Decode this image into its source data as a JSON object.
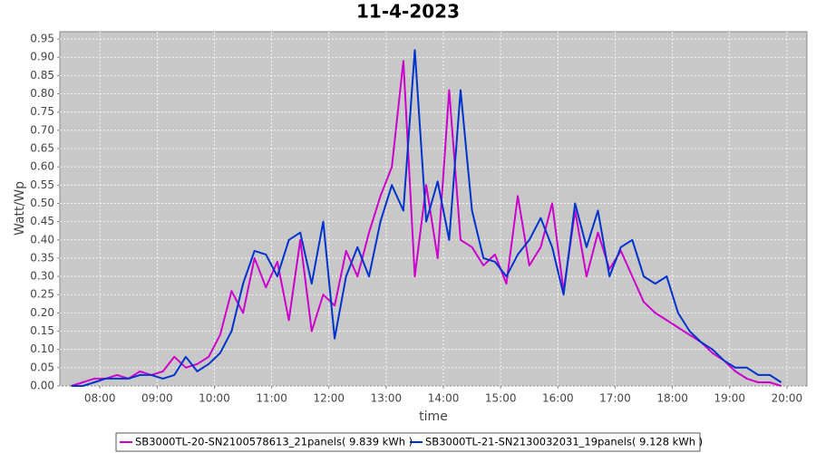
{
  "chart_data": {
    "type": "line",
    "title": "11-4-2023",
    "x_label": "time",
    "y_label": "Watt/Wp",
    "x": [
      7.5,
      7.7,
      7.9,
      8.1,
      8.3,
      8.5,
      8.7,
      8.9,
      9.1,
      9.3,
      9.5,
      9.7,
      9.9,
      10.1,
      10.3,
      10.5,
      10.7,
      10.9,
      11.1,
      11.3,
      11.5,
      11.7,
      11.9,
      12.1,
      12.3,
      12.5,
      12.7,
      12.9,
      13.1,
      13.3,
      13.5,
      13.7,
      13.9,
      14.1,
      14.3,
      14.5,
      14.7,
      14.9,
      15.1,
      15.3,
      15.5,
      15.7,
      15.9,
      16.1,
      16.3,
      16.5,
      16.7,
      16.9,
      17.1,
      17.3,
      17.5,
      17.7,
      17.9,
      18.1,
      18.3,
      18.5,
      18.7,
      18.9,
      19.1,
      19.3,
      19.5,
      19.7,
      19.9
    ],
    "series": [
      {
        "name": "SB3000TL-20-SN2100578613_21panels( 9.839 kWh )",
        "color": "#cc00cc",
        "values": [
          0.0,
          0.01,
          0.02,
          0.02,
          0.03,
          0.02,
          0.04,
          0.03,
          0.04,
          0.08,
          0.05,
          0.06,
          0.08,
          0.14,
          0.26,
          0.2,
          0.35,
          0.27,
          0.34,
          0.18,
          0.4,
          0.15,
          0.25,
          0.22,
          0.37,
          0.3,
          0.42,
          0.52,
          0.6,
          0.89,
          0.3,
          0.55,
          0.35,
          0.81,
          0.4,
          0.38,
          0.33,
          0.36,
          0.28,
          0.52,
          0.33,
          0.38,
          0.5,
          0.26,
          0.48,
          0.3,
          0.42,
          0.32,
          0.37,
          0.3,
          0.23,
          0.2,
          0.18,
          0.16,
          0.14,
          0.12,
          0.09,
          0.07,
          0.04,
          0.02,
          0.01,
          0.01,
          0.0
        ]
      },
      {
        "name": "SB3000TL-21-SN2130032031_19panels( 9.128 kWh )",
        "color": "#0033cc",
        "values": [
          0.0,
          0.0,
          0.01,
          0.02,
          0.02,
          0.02,
          0.03,
          0.03,
          0.02,
          0.03,
          0.08,
          0.04,
          0.06,
          0.09,
          0.15,
          0.28,
          0.37,
          0.36,
          0.3,
          0.4,
          0.42,
          0.28,
          0.45,
          0.13,
          0.3,
          0.38,
          0.3,
          0.45,
          0.55,
          0.48,
          0.92,
          0.45,
          0.56,
          0.4,
          0.81,
          0.48,
          0.35,
          0.34,
          0.3,
          0.36,
          0.4,
          0.46,
          0.38,
          0.25,
          0.5,
          0.38,
          0.48,
          0.3,
          0.38,
          0.4,
          0.3,
          0.28,
          0.3,
          0.2,
          0.15,
          0.12,
          0.1,
          0.07,
          0.05,
          0.05,
          0.03,
          0.03,
          0.01
        ]
      }
    ],
    "xlim": [
      7.3,
      20.35
    ],
    "xticks": [
      {
        "value": 8,
        "label": "08:00"
      },
      {
        "value": 9,
        "label": "09:00"
      },
      {
        "value": 10,
        "label": "10:00"
      },
      {
        "value": 11,
        "label": "11:00"
      },
      {
        "value": 12,
        "label": "12:00"
      },
      {
        "value": 13,
        "label": "13:00"
      },
      {
        "value": 14,
        "label": "14:00"
      },
      {
        "value": 15,
        "label": "15:00"
      },
      {
        "value": 16,
        "label": "16:00"
      },
      {
        "value": 17,
        "label": "17:00"
      },
      {
        "value": 18,
        "label": "18:00"
      },
      {
        "value": 19,
        "label": "19:00"
      },
      {
        "value": 20,
        "label": "20:00"
      }
    ],
    "ylim": [
      0,
      0.97
    ],
    "yticks": [
      {
        "value": 0,
        "label": "0.00"
      },
      0.05,
      {
        "value": 0.1,
        "label": "0.10"
      },
      0.15,
      {
        "value": 0.2,
        "label": "0.20"
      },
      0.25,
      {
        "value": 0.3,
        "label": "0.30"
      },
      0.35,
      {
        "value": 0.4,
        "label": "0.40"
      },
      0.45,
      {
        "value": 0.5,
        "label": "0.50"
      },
      0.55,
      {
        "value": 0.6,
        "label": "0.60"
      },
      0.65,
      {
        "value": 0.7,
        "label": "0.70"
      },
      0.75,
      {
        "value": 0.8,
        "label": "0.80"
      },
      0.85,
      {
        "value": 0.9,
        "label": "0.90"
      },
      0.95
    ],
    "grid": true
  }
}
